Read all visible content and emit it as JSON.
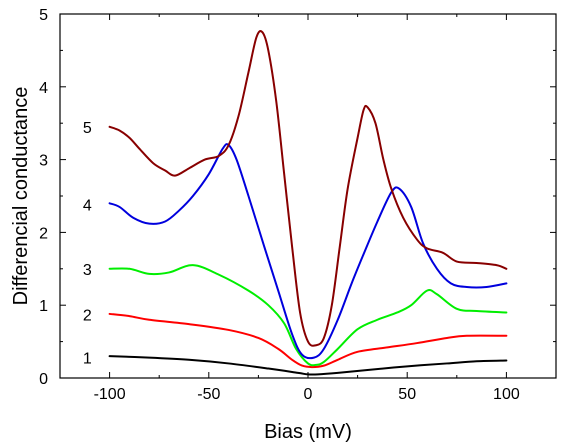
{
  "chart_data": {
    "type": "line",
    "xlabel": "Bias (mV)",
    "ylabel": "Differencial conductance",
    "xlim": [
      -125,
      125
    ],
    "ylim": [
      0,
      5
    ],
    "xticks": [
      -100,
      -50,
      0,
      50,
      100
    ],
    "xtick_labels": [
      "-100",
      "-50",
      "0",
      "50",
      "100"
    ],
    "yticks": [
      0,
      1,
      2,
      3,
      4,
      5
    ],
    "ytick_labels": [
      "0",
      "1",
      "2",
      "3",
      "4",
      "5"
    ],
    "grid": false,
    "series": [
      {
        "name": "1",
        "color": "#000000",
        "label_at": [
          -109,
          0.28
        ],
        "points": [
          [
            -100,
            0.3
          ],
          [
            -80,
            0.28
          ],
          [
            -60,
            0.25
          ],
          [
            -40,
            0.2
          ],
          [
            -20,
            0.13
          ],
          [
            -5,
            0.07
          ],
          [
            0,
            0.05
          ],
          [
            5,
            0.05
          ],
          [
            15,
            0.07
          ],
          [
            30,
            0.11
          ],
          [
            50,
            0.16
          ],
          [
            70,
            0.2
          ],
          [
            85,
            0.23
          ],
          [
            100,
            0.24
          ]
        ]
      },
      {
        "name": "2",
        "color": "#ff0000",
        "label_at": [
          -109,
          0.87
        ],
        "points": [
          [
            -100,
            0.88
          ],
          [
            -90,
            0.85
          ],
          [
            -80,
            0.8
          ],
          [
            -60,
            0.74
          ],
          [
            -40,
            0.66
          ],
          [
            -25,
            0.55
          ],
          [
            -15,
            0.4
          ],
          [
            -8,
            0.25
          ],
          [
            -3,
            0.17
          ],
          [
            2,
            0.15
          ],
          [
            8,
            0.17
          ],
          [
            15,
            0.25
          ],
          [
            25,
            0.36
          ],
          [
            40,
            0.42
          ],
          [
            55,
            0.48
          ],
          [
            70,
            0.55
          ],
          [
            80,
            0.58
          ],
          [
            100,
            0.58
          ]
        ]
      },
      {
        "name": "3",
        "color": "#00ee00",
        "label_at": [
          -109,
          1.5
        ],
        "points": [
          [
            -100,
            1.5
          ],
          [
            -90,
            1.5
          ],
          [
            -80,
            1.43
          ],
          [
            -70,
            1.45
          ],
          [
            -58,
            1.55
          ],
          [
            -45,
            1.42
          ],
          [
            -30,
            1.2
          ],
          [
            -20,
            1.0
          ],
          [
            -12,
            0.75
          ],
          [
            -6,
            0.4
          ],
          [
            0,
            0.2
          ],
          [
            4,
            0.18
          ],
          [
            8,
            0.22
          ],
          [
            15,
            0.4
          ],
          [
            25,
            0.67
          ],
          [
            35,
            0.8
          ],
          [
            45,
            0.9
          ],
          [
            52,
            1.0
          ],
          [
            60,
            1.2
          ],
          [
            65,
            1.15
          ],
          [
            75,
            0.95
          ],
          [
            85,
            0.92
          ],
          [
            100,
            0.9
          ]
        ]
      },
      {
        "name": "4",
        "color": "#0000dd",
        "label_at": [
          -109,
          2.38
        ],
        "points": [
          [
            -100,
            2.4
          ],
          [
            -95,
            2.35
          ],
          [
            -88,
            2.2
          ],
          [
            -80,
            2.12
          ],
          [
            -72,
            2.15
          ],
          [
            -65,
            2.3
          ],
          [
            -58,
            2.5
          ],
          [
            -50,
            2.8
          ],
          [
            -43,
            3.15
          ],
          [
            -40,
            3.2
          ],
          [
            -36,
            3.0
          ],
          [
            -30,
            2.5
          ],
          [
            -22,
            1.8
          ],
          [
            -15,
            1.2
          ],
          [
            -8,
            0.6
          ],
          [
            -3,
            0.32
          ],
          [
            3,
            0.28
          ],
          [
            8,
            0.4
          ],
          [
            15,
            0.8
          ],
          [
            22,
            1.3
          ],
          [
            28,
            1.7
          ],
          [
            35,
            2.15
          ],
          [
            42,
            2.55
          ],
          [
            46,
            2.6
          ],
          [
            52,
            2.35
          ],
          [
            58,
            1.85
          ],
          [
            65,
            1.5
          ],
          [
            72,
            1.3
          ],
          [
            80,
            1.25
          ],
          [
            90,
            1.25
          ],
          [
            100,
            1.3
          ]
        ]
      },
      {
        "name": "5",
        "color": "#880000",
        "label_at": [
          -109,
          3.45
        ],
        "points": [
          [
            -100,
            3.45
          ],
          [
            -95,
            3.4
          ],
          [
            -90,
            3.3
          ],
          [
            -85,
            3.15
          ],
          [
            -78,
            2.95
          ],
          [
            -72,
            2.85
          ],
          [
            -67,
            2.78
          ],
          [
            -60,
            2.88
          ],
          [
            -52,
            3.0
          ],
          [
            -45,
            3.05
          ],
          [
            -40,
            3.2
          ],
          [
            -35,
            3.6
          ],
          [
            -30,
            4.2
          ],
          [
            -26,
            4.68
          ],
          [
            -23,
            4.75
          ],
          [
            -20,
            4.5
          ],
          [
            -16,
            3.8
          ],
          [
            -12,
            2.8
          ],
          [
            -8,
            1.8
          ],
          [
            -4,
            0.9
          ],
          [
            0,
            0.5
          ],
          [
            4,
            0.45
          ],
          [
            8,
            0.55
          ],
          [
            12,
            1.0
          ],
          [
            16,
            1.8
          ],
          [
            20,
            2.6
          ],
          [
            25,
            3.3
          ],
          [
            28,
            3.68
          ],
          [
            30,
            3.72
          ],
          [
            34,
            3.5
          ],
          [
            38,
            3.0
          ],
          [
            42,
            2.6
          ],
          [
            48,
            2.2
          ],
          [
            55,
            1.9
          ],
          [
            60,
            1.78
          ],
          [
            68,
            1.72
          ],
          [
            75,
            1.6
          ],
          [
            85,
            1.58
          ],
          [
            95,
            1.55
          ],
          [
            100,
            1.5
          ]
        ]
      }
    ]
  }
}
